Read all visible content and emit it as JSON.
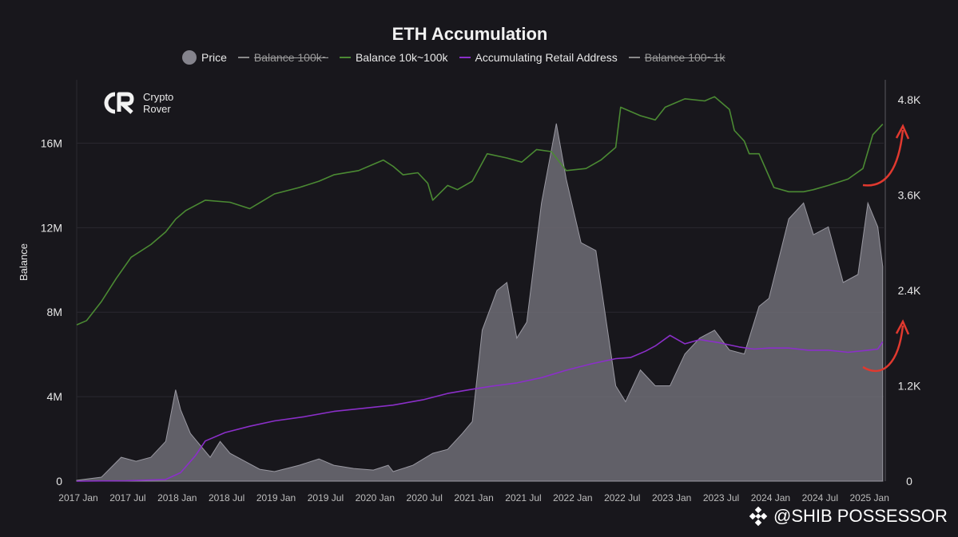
{
  "chart_data": {
    "type": "line",
    "title": "ETH Accumulation",
    "ylabel": "Balance",
    "y_left": {
      "ticks": [
        {
          "v": 0,
          "label": "0"
        },
        {
          "v": 4000000,
          "label": "4M"
        },
        {
          "v": 8000000,
          "label": "8M"
        },
        {
          "v": 12000000,
          "label": "12M"
        },
        {
          "v": 16000000,
          "label": "16M"
        }
      ],
      "lim": [
        0,
        19000000
      ]
    },
    "y_right": {
      "ticks": [
        {
          "v": 0,
          "label": "0"
        },
        {
          "v": 1200,
          "label": "1.2K"
        },
        {
          "v": 2400,
          "label": "2.4K"
        },
        {
          "v": 3600,
          "label": "3.6K"
        },
        {
          "v": 4800,
          "label": "4.8K"
        }
      ],
      "lim": [
        0,
        5050
      ]
    },
    "x_ticks": [
      "2017 Jan",
      "2017 Jul",
      "2018 Jan",
      "2018 Jul",
      "2019 Jan",
      "2019 Jul",
      "2020 Jan",
      "2020 Jul",
      "2021 Jan",
      "2021 Jul",
      "2022 Jan",
      "2022 Jul",
      "2023 Jan",
      "2023 Jul",
      "2024 Jan",
      "2024 Jul",
      "2025 Jan"
    ],
    "legend": [
      {
        "name": "Price",
        "marker": "dot",
        "color": "#85848d",
        "hidden": false
      },
      {
        "name": "Balance 100k~",
        "marker": "line",
        "color": "#8a8a8a",
        "hidden": true
      },
      {
        "name": "Balance 10k~100k",
        "marker": "line",
        "color": "#4b8a33",
        "hidden": false
      },
      {
        "name": "Accumulating Retail Address",
        "marker": "line",
        "color": "#8b2fc9",
        "hidden": false
      },
      {
        "name": "Balance 100~1k",
        "marker": "line",
        "color": "#8a8a8a",
        "hidden": true
      }
    ],
    "grid": true,
    "series": [
      {
        "name": "Price",
        "axis": "right",
        "type": "area",
        "color": "#85848d",
        "x": [
          2017.0,
          2017.25,
          2017.45,
          2017.6,
          2017.75,
          2017.9,
          2018.0,
          2018.05,
          2018.15,
          2018.25,
          2018.35,
          2018.45,
          2018.55,
          2018.7,
          2018.85,
          2019.0,
          2019.25,
          2019.45,
          2019.6,
          2019.8,
          2020.0,
          2020.15,
          2020.2,
          2020.4,
          2020.6,
          2020.75,
          2020.9,
          2021.0,
          2021.1,
          2021.25,
          2021.35,
          2021.45,
          2021.55,
          2021.7,
          2021.85,
          2021.95,
          2022.1,
          2022.25,
          2022.45,
          2022.55,
          2022.7,
          2022.85,
          2023.0,
          2023.15,
          2023.3,
          2023.45,
          2023.6,
          2023.75,
          2023.9,
          2024.0,
          2024.2,
          2024.35,
          2024.45,
          2024.6,
          2024.75,
          2024.9,
          2025.0,
          2025.1,
          2025.15
        ],
        "y": [
          10,
          50,
          300,
          250,
          300,
          500,
          1150,
          900,
          600,
          450,
          300,
          500,
          350,
          250,
          150,
          120,
          200,
          280,
          200,
          160,
          140,
          200,
          120,
          200,
          350,
          400,
          600,
          750,
          1900,
          2400,
          2500,
          1800,
          2000,
          3500,
          4500,
          3800,
          3000,
          2900,
          1200,
          1000,
          1400,
          1200,
          1200,
          1600,
          1800,
          1900,
          1650,
          1600,
          2200,
          2300,
          3300,
          3500,
          3100,
          3200,
          2500,
          2600,
          3500,
          3200,
          2700
        ]
      },
      {
        "name": "Balance 10k~100k",
        "axis": "left",
        "type": "line",
        "color": "#4b8a33",
        "x": [
          2017.0,
          2017.1,
          2017.25,
          2017.4,
          2017.55,
          2017.75,
          2017.9,
          2018.0,
          2018.1,
          2018.3,
          2018.55,
          2018.75,
          2019.0,
          2019.25,
          2019.45,
          2019.6,
          2019.85,
          2020.0,
          2020.1,
          2020.2,
          2020.3,
          2020.45,
          2020.55,
          2020.6,
          2020.75,
          2020.85,
          2021.0,
          2021.15,
          2021.35,
          2021.5,
          2021.65,
          2021.8,
          2021.95,
          2022.15,
          2022.3,
          2022.45,
          2022.5,
          2022.7,
          2022.85,
          2022.95,
          2023.15,
          2023.35,
          2023.45,
          2023.6,
          2023.65,
          2023.75,
          2023.8,
          2023.9,
          2024.05,
          2024.2,
          2024.35,
          2024.45,
          2024.6,
          2024.8,
          2024.95,
          2025.0,
          2025.05,
          2025.15
        ],
        "y": [
          7400000,
          7600000,
          8500000,
          9600000,
          10600000,
          11200000,
          11800000,
          12400000,
          12800000,
          13300000,
          13200000,
          12900000,
          13600000,
          13900000,
          14200000,
          14500000,
          14700000,
          15000000,
          15200000,
          14900000,
          14500000,
          14600000,
          14100000,
          13300000,
          14000000,
          13800000,
          14200000,
          15500000,
          15300000,
          15100000,
          15700000,
          15600000,
          14700000,
          14800000,
          15200000,
          15800000,
          17700000,
          17300000,
          17100000,
          17700000,
          18100000,
          18000000,
          18200000,
          17600000,
          16600000,
          16100000,
          15500000,
          15500000,
          13900000,
          13700000,
          13700000,
          13800000,
          14000000,
          14300000,
          14800000,
          15600000,
          16400000,
          16900000
        ]
      },
      {
        "name": "Accumulating Retail Address",
        "axis": "left",
        "type": "line",
        "color": "#8b2fc9",
        "x": [
          2017.0,
          2017.5,
          2017.9,
          2018.05,
          2018.2,
          2018.3,
          2018.5,
          2018.75,
          2019.0,
          2019.3,
          2019.6,
          2019.9,
          2020.2,
          2020.5,
          2020.75,
          2021.0,
          2021.2,
          2021.45,
          2021.7,
          2021.95,
          2022.2,
          2022.45,
          2022.6,
          2022.75,
          2022.85,
          2023.0,
          2023.15,
          2023.3,
          2023.5,
          2023.7,
          2023.85,
          2024.0,
          2024.2,
          2024.4,
          2024.6,
          2024.8,
          2025.0,
          2025.1,
          2025.15
        ],
        "y": [
          0,
          20000,
          80000,
          400000,
          1200000,
          1900000,
          2300000,
          2600000,
          2850000,
          3050000,
          3300000,
          3450000,
          3600000,
          3850000,
          4150000,
          4350000,
          4500000,
          4650000,
          4900000,
          5250000,
          5550000,
          5800000,
          5850000,
          6150000,
          6400000,
          6900000,
          6500000,
          6700000,
          6550000,
          6350000,
          6250000,
          6300000,
          6300000,
          6200000,
          6200000,
          6100000,
          6200000,
          6250000,
          6600000
        ]
      }
    ]
  },
  "logo": {
    "line1": "Crypto",
    "line2": "Rover"
  },
  "watermark": {
    "text": "@SHIB POSSESSOR"
  }
}
